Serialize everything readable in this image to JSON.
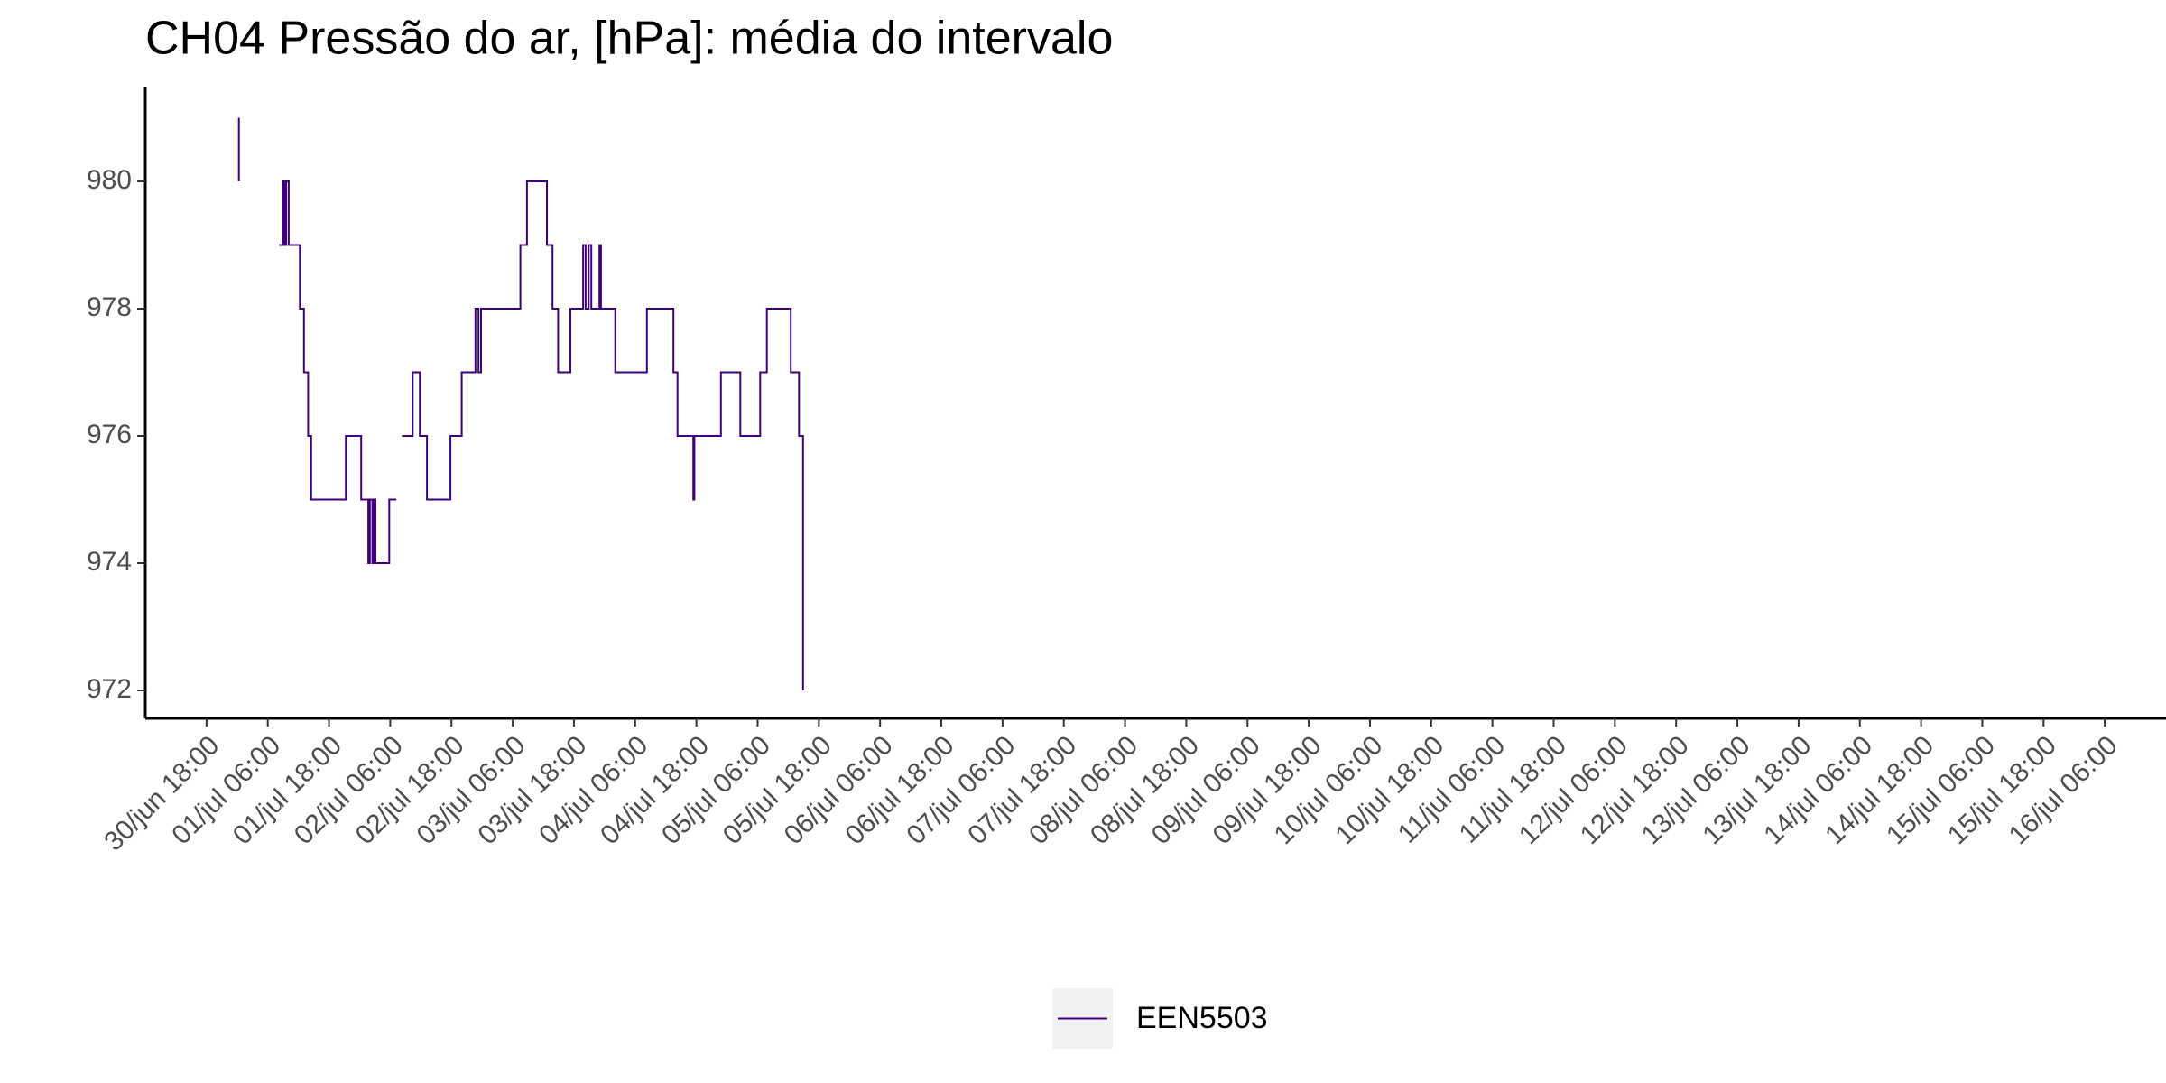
{
  "chart_data": {
    "type": "line",
    "step": "post",
    "title": "CH04 Pressão do ar, [hPa]: média do intervalo",
    "x": [
      "01/jul 00:20",
      "01/jul 00:20",
      "01/jul 04:00",
      "01/jul 08:12",
      "01/jul 09:00",
      "01/jul 09:18",
      "01/jul 09:36",
      "01/jul 10:06",
      "01/jul 12:18",
      "01/jul 13:06",
      "01/jul 13:54",
      "01/jul 14:30",
      "01/jul 21:18",
      "02/jul 00:18",
      "02/jul 01:42",
      "02/jul 02:00",
      "02/jul 02:30",
      "02/jul 02:48",
      "02/jul 03:06",
      "02/jul 05:48",
      "02/jul 07:12",
      "02/jul 07:40",
      "02/jul 08:18",
      "02/jul 10:24",
      "02/jul 11:48",
      "02/jul 13:12",
      "02/jul 17:48",
      "02/jul 20:00",
      "02/jul 22:42",
      "02/jul 23:18",
      "02/jul 23:48",
      "03/jul 07:30",
      "03/jul 08:48",
      "03/jul 12:42",
      "03/jul 13:48",
      "03/jul 14:54",
      "03/jul 17:18",
      "03/jul 19:48",
      "03/jul 20:18",
      "03/jul 20:54",
      "03/jul 21:24",
      "03/jul 23:00",
      "03/jul 23:18",
      "04/jul 02:06",
      "04/jul 08:18",
      "04/jul 13:30",
      "04/jul 14:18",
      "04/jul 17:24",
      "04/jul 17:36",
      "04/jul 22:48",
      "05/jul 02:36",
      "05/jul 06:30",
      "05/jul 07:48",
      "05/jul 12:30",
      "05/jul 14:06",
      "05/jul 14:54"
    ],
    "series": [
      {
        "name": "EEN5503",
        "color": "#3f007d",
        "values": [
          981,
          980,
          null,
          979,
          980,
          979,
          980,
          979,
          978,
          977,
          976,
          975,
          976,
          975,
          974,
          975,
          974,
          975,
          974,
          975,
          975,
          null,
          976,
          977,
          976,
          975,
          976,
          977,
          978,
          977,
          978,
          979,
          980,
          979,
          978,
          977,
          978,
          979,
          978,
          979,
          978,
          979,
          978,
          977,
          978,
          977,
          976,
          975,
          976,
          977,
          976,
          977,
          978,
          977,
          976,
          972
        ]
      }
    ],
    "xlim": [
      "30/jun 06:00",
      "16/jul 18:00"
    ],
    "xticks": [
      "30/jun 18:00",
      "01/jul 06:00",
      "01/jul 18:00",
      "02/jul 06:00",
      "02/jul 18:00",
      "03/jul 06:00",
      "03/jul 18:00",
      "04/jul 06:00",
      "04/jul 18:00",
      "05/jul 06:00",
      "05/jul 18:00",
      "06/jul 06:00",
      "06/jul 18:00",
      "07/jul 06:00",
      "07/jul 18:00",
      "08/jul 06:00",
      "08/jul 18:00",
      "09/jul 06:00",
      "09/jul 18:00",
      "10/jul 06:00",
      "10/jul 18:00",
      "11/jul 06:00",
      "11/jul 18:00",
      "12/jul 06:00",
      "12/jul 18:00",
      "13/jul 06:00",
      "13/jul 18:00",
      "14/jul 06:00",
      "14/jul 18:00",
      "15/jul 06:00",
      "15/jul 18:00",
      "16/jul 06:00"
    ],
    "ylim": [
      971.56,
      981.49
    ],
    "yticks": [
      972,
      974,
      976,
      978,
      980
    ],
    "grid": false,
    "legend": "bottom"
  }
}
